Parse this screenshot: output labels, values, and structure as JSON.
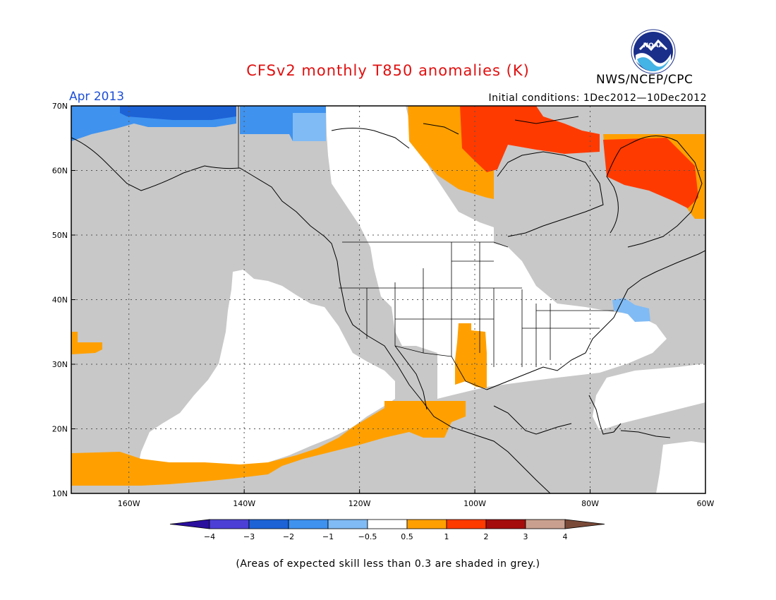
{
  "title": "CFSv2 monthly T850 anomalies (K)",
  "agency": "NWS/NCEP/CPC",
  "logo_text": "NOAA",
  "valid_month": "Apr 2013",
  "initial_conditions": "Initial conditions: 1Dec2012—10Dec2012",
  "footnote": "(Areas of expected skill less than 0.3 are shaded in grey.)",
  "map": {
    "lon_range": [
      -170,
      -60
    ],
    "lat_range": [
      10,
      70
    ],
    "lat_ticks": [
      "10N",
      "20N",
      "30N",
      "40N",
      "50N",
      "60N",
      "70N"
    ],
    "lon_ticks": [
      "160W",
      "140W",
      "120W",
      "100W",
      "80W",
      "60W"
    ],
    "low_skill_color": "#c8c8c8"
  },
  "colorbar": {
    "labels": [
      "−4",
      "−3",
      "−2",
      "−1",
      "−0.5",
      "0.5",
      "1",
      "2",
      "3",
      "4"
    ],
    "colors": [
      "#2a0f9e",
      "#4b3fd6",
      "#1d63d6",
      "#3f92ee",
      "#80bbf5",
      "#ffffff",
      "#ffa000",
      "#ff3a00",
      "#a50d0d",
      "#c9a08f",
      "#7a4a38"
    ]
  }
}
